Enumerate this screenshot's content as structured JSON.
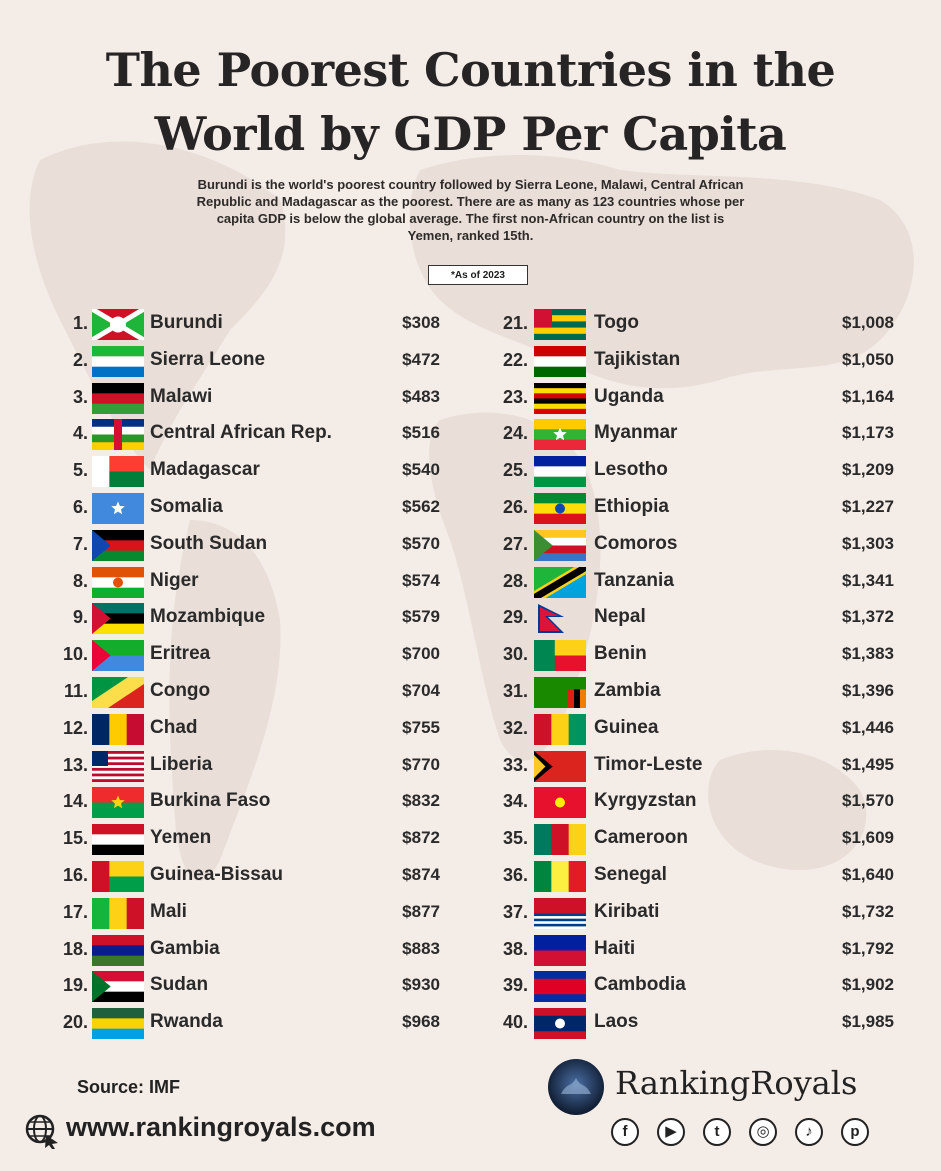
{
  "title_line1": "The Poorest Countries in the",
  "title_line2": "World by GDP Per Capita",
  "subtitle_line1": "Burundi is the world's poorest country followed by Sierra Leone, Malawi, Central African",
  "subtitle_line2": "Republic and Madagascar as the poorest. There are as many as 123 countries whose per",
  "subtitle_line3": "capita GDP is below the global average. The first non-African country on the list is",
  "subtitle_line4": "Yemen, ranked 15th.",
  "as_of": "*As of 2023",
  "source": "Source: IMF",
  "website": "www.rankingroyals.com",
  "brand": "RankingRoyals",
  "social_icons": [
    "facebook-icon",
    "youtube-icon",
    "twitter-icon",
    "instagram-icon",
    "tiktok-icon",
    "pinterest-icon"
  ],
  "chart_data": {
    "type": "table",
    "columns": [
      "rank",
      "country",
      "gdp_per_capita"
    ],
    "rows": [
      {
        "rank": "1.",
        "country": "Burundi",
        "value": "$308"
      },
      {
        "rank": "2.",
        "country": "Sierra Leone",
        "value": "$472"
      },
      {
        "rank": "3.",
        "country": "Malawi",
        "value": "$483"
      },
      {
        "rank": "4.",
        "country": "Central African Rep.",
        "value": "$516"
      },
      {
        "rank": "5.",
        "country": "Madagascar",
        "value": "$540"
      },
      {
        "rank": "6.",
        "country": "Somalia",
        "value": "$562"
      },
      {
        "rank": "7.",
        "country": "South Sudan",
        "value": "$570"
      },
      {
        "rank": "8.",
        "country": "Niger",
        "value": "$574"
      },
      {
        "rank": "9.",
        "country": "Mozambique",
        "value": "$579"
      },
      {
        "rank": "10.",
        "country": "Eritrea",
        "value": "$700"
      },
      {
        "rank": "11.",
        "country": "Congo",
        "value": "$704"
      },
      {
        "rank": "12.",
        "country": "Chad",
        "value": "$755"
      },
      {
        "rank": "13.",
        "country": "Liberia",
        "value": "$770"
      },
      {
        "rank": "14.",
        "country": "Burkina Faso",
        "value": "$832"
      },
      {
        "rank": "15.",
        "country": "Yemen",
        "value": "$872"
      },
      {
        "rank": "16.",
        "country": "Guinea-Bissau",
        "value": "$874"
      },
      {
        "rank": "17.",
        "country": "Mali",
        "value": "$877"
      },
      {
        "rank": "18.",
        "country": "Gambia",
        "value": "$883"
      },
      {
        "rank": "19.",
        "country": "Sudan",
        "value": "$930"
      },
      {
        "rank": "20.",
        "country": "Rwanda",
        "value": "$968"
      },
      {
        "rank": "21.",
        "country": "Togo",
        "value": "$1,008"
      },
      {
        "rank": "22.",
        "country": "Tajikistan",
        "value": "$1,050"
      },
      {
        "rank": "23.",
        "country": "Uganda",
        "value": "$1,164"
      },
      {
        "rank": "24.",
        "country": "Myanmar",
        "value": "$1,173"
      },
      {
        "rank": "25.",
        "country": "Lesotho",
        "value": "$1,209"
      },
      {
        "rank": "26.",
        "country": "Ethiopia",
        "value": "$1,227"
      },
      {
        "rank": "27.",
        "country": "Comoros",
        "value": "$1,303"
      },
      {
        "rank": "28.",
        "country": "Tanzania",
        "value": "$1,341"
      },
      {
        "rank": "29.",
        "country": "Nepal",
        "value": "$1,372"
      },
      {
        "rank": "30.",
        "country": "Benin",
        "value": "$1,383"
      },
      {
        "rank": "31.",
        "country": "Zambia",
        "value": "$1,396"
      },
      {
        "rank": "32.",
        "country": "Guinea",
        "value": "$1,446"
      },
      {
        "rank": "33.",
        "country": "Timor-Leste",
        "value": "$1,495"
      },
      {
        "rank": "34.",
        "country": "Kyrgyzstan",
        "value": "$1,570"
      },
      {
        "rank": "35.",
        "country": "Cameroon",
        "value": "$1,609"
      },
      {
        "rank": "36.",
        "country": "Senegal",
        "value": "$1,640"
      },
      {
        "rank": "37.",
        "country": "Kiribati",
        "value": "$1,732"
      },
      {
        "rank": "38.",
        "country": "Haiti",
        "value": "$1,792"
      },
      {
        "rank": "39.",
        "country": "Cambodia",
        "value": "$1,902"
      },
      {
        "rank": "40.",
        "country": "Laos",
        "value": "$1,985"
      }
    ]
  },
  "flags": {
    "Burundi": {
      "type": "saltire",
      "colors": [
        "#ce1126",
        "#1eb53a",
        "#ffffff"
      ]
    },
    "Sierra Leone": {
      "type": "h",
      "colors": [
        "#1eb53a",
        "#ffffff",
        "#0072c6"
      ]
    },
    "Malawi": {
      "type": "h",
      "colors": [
        "#000000",
        "#ce1126",
        "#339e35"
      ]
    },
    "Central African Rep.": {
      "type": "h",
      "colors": [
        "#003082",
        "#ffffff",
        "#289728",
        "#ffce00"
      ],
      "overlay": "#d21034"
    },
    "Madagascar": {
      "type": "hoist",
      "colors": [
        "#ffffff",
        "#fc3d32",
        "#007e3a"
      ]
    },
    "Somalia": {
      "type": "solid",
      "colors": [
        "#4189dd"
      ],
      "star": "#ffffff"
    },
    "South Sudan": {
      "type": "h",
      "colors": [
        "#000000",
        "#da121a",
        "#078930"
      ],
      "triangle": "#0f47af"
    },
    "Niger": {
      "type": "h",
      "colors": [
        "#e05206",
        "#ffffff",
        "#0db02b"
      ],
      "disc": "#e05206"
    },
    "Mozambique": {
      "type": "h",
      "colors": [
        "#007168",
        "#000000",
        "#fce100"
      ],
      "triangle": "#d21034"
    },
    "Eritrea": {
      "type": "h",
      "colors": [
        "#12ad2b",
        "#4189dd"
      ],
      "triangle": "#ea0437"
    },
    "Congo": {
      "type": "diag",
      "colors": [
        "#009543",
        "#fbde4a",
        "#dc241f"
      ]
    },
    "Chad": {
      "type": "v",
      "colors": [
        "#002664",
        "#fecb00",
        "#c60c30"
      ]
    },
    "Liberia": {
      "type": "stripes",
      "colors": [
        "#bf0a30",
        "#ffffff"
      ],
      "canton": "#002868"
    },
    "Burkina Faso": {
      "type": "h",
      "colors": [
        "#ef2b2d",
        "#009e49"
      ],
      "star": "#fcd116"
    },
    "Yemen": {
      "type": "h",
      "colors": [
        "#ce1126",
        "#ffffff",
        "#000000"
      ]
    },
    "Guinea-Bissau": {
      "type": "gb",
      "colors": [
        "#ce1126",
        "#fcd116",
        "#009e49"
      ]
    },
    "Mali": {
      "type": "v",
      "colors": [
        "#14b53a",
        "#fcd116",
        "#ce1126"
      ]
    },
    "Gambia": {
      "type": "h",
      "colors": [
        "#ce1126",
        "#0c1c8c",
        "#3a7728"
      ]
    },
    "Sudan": {
      "type": "h",
      "colors": [
        "#d21034",
        "#ffffff",
        "#000000"
      ],
      "triangle": "#007229"
    },
    "Rwanda": {
      "type": "h",
      "colors": [
        "#20603d",
        "#fad201",
        "#00a1de"
      ],
      "reverse": true
    },
    "Togo": {
      "type": "h",
      "colors": [
        "#006a4e",
        "#ffce00",
        "#006a4e",
        "#ffce00",
        "#006a4e"
      ],
      "canton": "#d21034"
    },
    "Tajikistan": {
      "type": "h",
      "colors": [
        "#cc0000",
        "#ffffff",
        "#006600"
      ]
    },
    "Uganda": {
      "type": "h",
      "colors": [
        "#000000",
        "#fcdc04",
        "#d90000",
        "#000000",
        "#fcdc04",
        "#d90000"
      ]
    },
    "Myanmar": {
      "type": "h",
      "colors": [
        "#fecb00",
        "#34b233",
        "#ea2839"
      ],
      "star": "#ffffff"
    },
    "Lesotho": {
      "type": "h",
      "colors": [
        "#00209f",
        "#ffffff",
        "#009543"
      ]
    },
    "Ethiopia": {
      "type": "h",
      "colors": [
        "#078930",
        "#fcdd09",
        "#da121a"
      ],
      "disc": "#0f47af"
    },
    "Comoros": {
      "type": "h",
      "colors": [
        "#ffc61e",
        "#ffffff",
        "#ce1126",
        "#3a75c4"
      ],
      "triangle": "#3d8e33"
    },
    "Tanzania": {
      "type": "tz",
      "colors": [
        "#1eb53a",
        "#00a3dd",
        "#000000",
        "#fcd116"
      ]
    },
    "Nepal": {
      "type": "nepal",
      "colors": [
        "#dc143c",
        "#003893"
      ]
    },
    "Benin": {
      "type": "benin",
      "colors": [
        "#008751",
        "#fcd116",
        "#e8112d"
      ]
    },
    "Zambia": {
      "type": "solid",
      "colors": [
        "#198a00"
      ],
      "bars": [
        "#de2010",
        "#000000",
        "#ef7d00"
      ]
    },
    "Guinea": {
      "type": "v",
      "colors": [
        "#ce1126",
        "#fcd116",
        "#009460"
      ]
    },
    "Timor-Leste": {
      "type": "solid",
      "colors": [
        "#dc241f"
      ],
      "triangle": "#000000",
      "tri2": "#ffc726"
    },
    "Kyrgyzstan": {
      "type": "solid",
      "colors": [
        "#e8112d"
      ],
      "disc": "#ffef00"
    },
    "Cameroon": {
      "type": "v",
      "colors": [
        "#007a5e",
        "#ce1126",
        "#fcd116"
      ]
    },
    "Senegal": {
      "type": "v",
      "colors": [
        "#00853f",
        "#fdef42",
        "#e31b23"
      ]
    },
    "Kiribati": {
      "type": "kiribati",
      "colors": [
        "#ce1126",
        "#003f87",
        "#ffffff"
      ]
    },
    "Haiti": {
      "type": "h",
      "colors": [
        "#00209f",
        "#d21034"
      ]
    },
    "Cambodia": {
      "type": "h",
      "colors": [
        "#032ea1",
        "#e00025",
        "#e00025",
        "#032ea1"
      ]
    },
    "Laos": {
      "type": "h",
      "colors": [
        "#ce1126",
        "#002868",
        "#002868",
        "#ce1126"
      ],
      "disc": "#ffffff"
    }
  }
}
